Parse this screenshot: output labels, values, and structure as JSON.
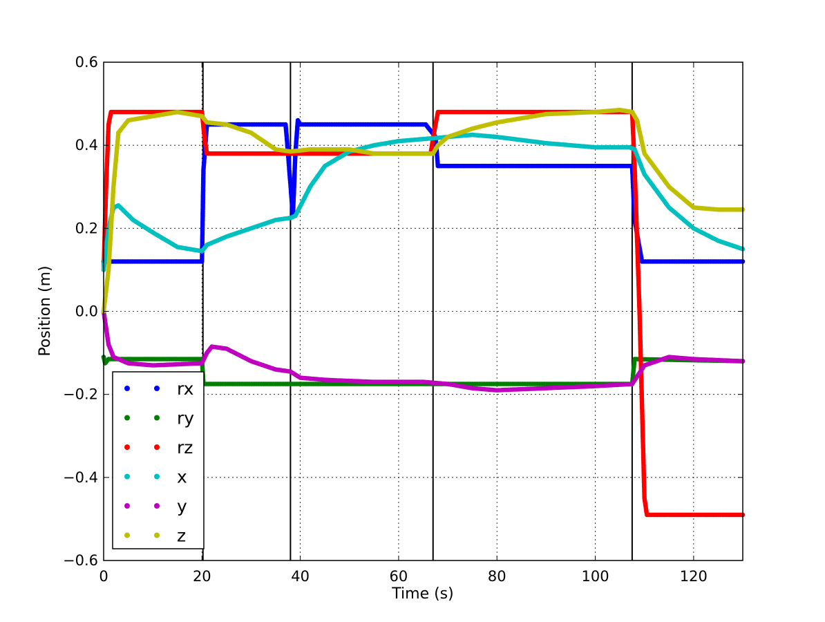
{
  "chart_data": {
    "type": "scatter",
    "xlabel": "Time (s)",
    "ylabel": "Position (m)",
    "xlim": [
      0,
      130
    ],
    "ylim": [
      -0.6,
      0.6
    ],
    "xticks": [
      0,
      20,
      40,
      60,
      80,
      100,
      120
    ],
    "yticks": [
      -0.6,
      -0.4,
      -0.2,
      0.0,
      0.2,
      0.4,
      0.6
    ],
    "xtick_labels": [
      "0",
      "20",
      "40",
      "60",
      "80",
      "100",
      "120"
    ],
    "ytick_labels": [
      "−0.6",
      "−0.4",
      "−0.2",
      "0.0",
      "0.2",
      "0.4",
      "0.6"
    ],
    "grid": true,
    "legend_position": "lower-left",
    "vertical_lines": [
      20.2,
      38.0,
      67.0,
      107.5
    ],
    "series": [
      {
        "name": "rx",
        "color": "#0000ff",
        "points": [
          [
            0,
            0.12
          ],
          [
            1,
            0.12
          ],
          [
            20,
            0.12
          ],
          [
            20.3,
            0.34
          ],
          [
            21,
            0.45
          ],
          [
            37,
            0.45
          ],
          [
            37.2,
            0.425
          ],
          [
            38.5,
            0.23
          ],
          [
            39,
            0.38
          ],
          [
            39.5,
            0.46
          ],
          [
            40,
            0.45
          ],
          [
            65.5,
            0.45
          ],
          [
            67.5,
            0.42
          ],
          [
            68,
            0.35
          ],
          [
            107,
            0.35
          ],
          [
            107.5,
            0.35
          ],
          [
            108,
            0.22
          ],
          [
            109.5,
            0.12
          ],
          [
            130,
            0.12
          ]
        ]
      },
      {
        "name": "ry",
        "color": "#007f00",
        "points": [
          [
            0,
            -0.11
          ],
          [
            0.3,
            -0.125
          ],
          [
            1,
            -0.115
          ],
          [
            20,
            -0.115
          ],
          [
            20.3,
            -0.175
          ],
          [
            37,
            -0.175
          ],
          [
            38.5,
            -0.175
          ],
          [
            67,
            -0.175
          ],
          [
            107.5,
            -0.175
          ],
          [
            108,
            -0.115
          ],
          [
            130,
            -0.12
          ]
        ]
      },
      {
        "name": "rz",
        "color": "#ff0000",
        "points": [
          [
            0,
            0.1
          ],
          [
            0.5,
            0.3
          ],
          [
            1,
            0.45
          ],
          [
            1.5,
            0.48
          ],
          [
            20,
            0.48
          ],
          [
            20.5,
            0.42
          ],
          [
            21,
            0.38
          ],
          [
            37,
            0.38
          ],
          [
            38.5,
            0.38
          ],
          [
            66.5,
            0.38
          ],
          [
            67.5,
            0.45
          ],
          [
            68,
            0.48
          ],
          [
            107.5,
            0.48
          ],
          [
            108,
            0.35
          ],
          [
            109,
            0.0
          ],
          [
            110,
            -0.45
          ],
          [
            110.5,
            -0.49
          ],
          [
            130,
            -0.49
          ]
        ]
      },
      {
        "name": "x",
        "color": "#00bfbf",
        "points": [
          [
            0,
            0.1
          ],
          [
            1,
            0.2
          ],
          [
            2,
            0.25
          ],
          [
            3,
            0.255
          ],
          [
            6,
            0.22
          ],
          [
            10,
            0.19
          ],
          [
            15,
            0.155
          ],
          [
            20,
            0.145
          ],
          [
            21,
            0.16
          ],
          [
            25,
            0.18
          ],
          [
            30,
            0.2
          ],
          [
            35,
            0.22
          ],
          [
            38,
            0.225
          ],
          [
            39,
            0.23
          ],
          [
            42,
            0.3
          ],
          [
            45,
            0.35
          ],
          [
            50,
            0.385
          ],
          [
            55,
            0.4
          ],
          [
            60,
            0.41
          ],
          [
            65,
            0.415
          ],
          [
            70,
            0.42
          ],
          [
            75,
            0.425
          ],
          [
            80,
            0.42
          ],
          [
            90,
            0.405
          ],
          [
            100,
            0.395
          ],
          [
            107,
            0.395
          ],
          [
            108,
            0.39
          ],
          [
            110,
            0.33
          ],
          [
            115,
            0.25
          ],
          [
            120,
            0.2
          ],
          [
            125,
            0.17
          ],
          [
            130,
            0.15
          ]
        ]
      },
      {
        "name": "y",
        "color": "#bf00bf",
        "points": [
          [
            0,
            0.0
          ],
          [
            1,
            -0.08
          ],
          [
            2,
            -0.11
          ],
          [
            5,
            -0.125
          ],
          [
            10,
            -0.13
          ],
          [
            20,
            -0.125
          ],
          [
            21,
            -0.1
          ],
          [
            22,
            -0.085
          ],
          [
            25,
            -0.09
          ],
          [
            30,
            -0.12
          ],
          [
            35,
            -0.14
          ],
          [
            38,
            -0.145
          ],
          [
            40,
            -0.16
          ],
          [
            45,
            -0.165
          ],
          [
            55,
            -0.17
          ],
          [
            65,
            -0.17
          ],
          [
            70,
            -0.175
          ],
          [
            75,
            -0.185
          ],
          [
            80,
            -0.19
          ],
          [
            90,
            -0.185
          ],
          [
            100,
            -0.18
          ],
          [
            107.5,
            -0.175
          ],
          [
            110,
            -0.13
          ],
          [
            115,
            -0.11
          ],
          [
            120,
            -0.115
          ],
          [
            130,
            -0.12
          ]
        ]
      },
      {
        "name": "z",
        "color": "#bfbf00",
        "points": [
          [
            0,
            0.0
          ],
          [
            1,
            0.1
          ],
          [
            2,
            0.3
          ],
          [
            3,
            0.43
          ],
          [
            5,
            0.46
          ],
          [
            10,
            0.47
          ],
          [
            15,
            0.48
          ],
          [
            20,
            0.47
          ],
          [
            21,
            0.455
          ],
          [
            25,
            0.45
          ],
          [
            30,
            0.43
          ],
          [
            35,
            0.39
          ],
          [
            38,
            0.385
          ],
          [
            42,
            0.39
          ],
          [
            50,
            0.39
          ],
          [
            55,
            0.38
          ],
          [
            60,
            0.38
          ],
          [
            66,
            0.38
          ],
          [
            67,
            0.38
          ],
          [
            68,
            0.4
          ],
          [
            70,
            0.42
          ],
          [
            75,
            0.44
          ],
          [
            80,
            0.455
          ],
          [
            90,
            0.475
          ],
          [
            100,
            0.48
          ],
          [
            105,
            0.485
          ],
          [
            107.5,
            0.48
          ],
          [
            108.5,
            0.46
          ],
          [
            110,
            0.38
          ],
          [
            115,
            0.3
          ],
          [
            120,
            0.25
          ],
          [
            125,
            0.245
          ],
          [
            130,
            0.245
          ]
        ]
      }
    ]
  }
}
